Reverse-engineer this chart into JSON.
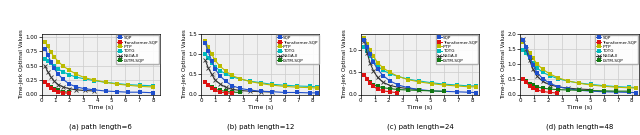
{
  "subplots": [
    {
      "title": "(a) path length=6",
      "ylim": [
        0.0,
        1.05
      ]
    },
    {
      "title": "(b) path length=12",
      "ylim": [
        0.0,
        1.5
      ]
    },
    {
      "title": "(c) path length=24",
      "ylim": [
        0.0,
        1.35
      ]
    },
    {
      "title": "(d) path length=48",
      "ylim": [
        0.0,
        2.0
      ]
    }
  ],
  "xlim": [
    0,
    8.5
  ],
  "xticks": [
    0,
    1,
    2,
    3,
    4,
    5,
    6,
    7,
    8
  ],
  "xlabel": "Time (s)",
  "ylabel": "Time-Jerk Optimal Values",
  "series": [
    {
      "name": "SQP",
      "color": "#1f4fcc",
      "marker": "s",
      "ms": 2.2,
      "lw": 0.8
    },
    {
      "name": "Transformer-SQP",
      "color": "#dd1111",
      "marker": "s",
      "ms": 2.2,
      "lw": 0.8
    },
    {
      "name": "iPTP",
      "color": "#bbbb00",
      "marker": "s",
      "ms": 2.2,
      "lw": 0.8
    },
    {
      "name": "TOTG",
      "color": "#00bbbb",
      "marker": "s",
      "ms": 2.2,
      "lw": 0.8
    },
    {
      "name": "NSGA-II",
      "color": "#333333",
      "marker": "x",
      "ms": 2.8,
      "lw": 0.8
    },
    {
      "name": "LSTM-SQP",
      "color": "#117711",
      "marker": "s",
      "ms": 2.2,
      "lw": 0.8
    }
  ],
  "curves": {
    "6": {
      "SQP": {
        "x": [
          0.25,
          0.45,
          0.65,
          0.9,
          1.2,
          1.55,
          2.0,
          2.5,
          3.1,
          3.8,
          4.6,
          5.4,
          6.2,
          7.1,
          8.0
        ],
        "y": [
          0.79,
          0.69,
          0.57,
          0.45,
          0.35,
          0.26,
          0.18,
          0.13,
          0.1,
          0.08,
          0.06,
          0.05,
          0.04,
          0.04,
          0.03
        ]
      },
      "Transformer-SQP": {
        "x": [
          0.25,
          0.45,
          0.65,
          0.9,
          1.2,
          1.55,
          1.95
        ],
        "y": [
          0.22,
          0.16,
          0.11,
          0.07,
          0.05,
          0.03,
          0.02
        ]
      },
      "iPTP": {
        "x": [
          0.25,
          0.45,
          0.65,
          0.9,
          1.2,
          1.55,
          2.0,
          2.5,
          3.1,
          3.8,
          4.6,
          5.4,
          6.2,
          7.1,
          8.0
        ],
        "y": [
          0.91,
          0.83,
          0.74,
          0.65,
          0.57,
          0.49,
          0.42,
          0.35,
          0.29,
          0.25,
          0.21,
          0.18,
          0.16,
          0.14,
          0.13
        ]
      },
      "TOTG": {
        "x": [
          0.25,
          0.45,
          0.65,
          0.9,
          1.2,
          1.55,
          2.0,
          2.5,
          3.1,
          3.8,
          4.6,
          5.4,
          6.2,
          7.1,
          8.0
        ],
        "y": [
          0.62,
          0.58,
          0.54,
          0.49,
          0.44,
          0.39,
          0.34,
          0.3,
          0.27,
          0.24,
          0.21,
          0.19,
          0.17,
          0.16,
          0.15
        ]
      },
      "NSGA-II": {
        "x": [
          0.25,
          0.45,
          0.65,
          0.9,
          1.2,
          1.55,
          2.0,
          2.5,
          3.1,
          3.8
        ],
        "y": [
          0.49,
          0.39,
          0.31,
          0.23,
          0.17,
          0.13,
          0.1,
          0.08,
          0.07,
          0.06
        ]
      },
      "LSTM-SQP": {
        "x": [
          0.25,
          0.45,
          0.65,
          0.9,
          1.2,
          1.55,
          1.95
        ],
        "y": [
          0.22,
          0.17,
          0.13,
          0.09,
          0.07,
          0.05,
          0.04
        ]
      }
    },
    "12": {
      "SQP": {
        "x": [
          0.3,
          0.5,
          0.75,
          1.0,
          1.35,
          1.75,
          2.2,
          2.8,
          3.5,
          4.3,
          5.1,
          6.0,
          6.9,
          7.8,
          8.3
        ],
        "y": [
          1.26,
          1.07,
          0.83,
          0.63,
          0.46,
          0.33,
          0.22,
          0.15,
          0.11,
          0.08,
          0.07,
          0.05,
          0.05,
          0.04,
          0.04
        ]
      },
      "Transformer-SQP": {
        "x": [
          0.3,
          0.5,
          0.75,
          1.0,
          1.35,
          1.75,
          2.2
        ],
        "y": [
          0.31,
          0.23,
          0.15,
          0.1,
          0.06,
          0.04,
          0.03
        ]
      },
      "iPTP": {
        "x": [
          0.3,
          0.5,
          0.75,
          1.0,
          1.35,
          1.75,
          2.2,
          2.8,
          3.5,
          4.3,
          5.1,
          6.0,
          6.9,
          7.8,
          8.3
        ],
        "y": [
          1.32,
          1.17,
          1.0,
          0.84,
          0.7,
          0.58,
          0.47,
          0.39,
          0.32,
          0.27,
          0.23,
          0.2,
          0.18,
          0.17,
          0.16
        ]
      },
      "TOTG": {
        "x": [
          0.3,
          0.5,
          0.75,
          1.0,
          1.35,
          1.75,
          2.2,
          2.8,
          3.5,
          4.3,
          5.1,
          6.0,
          6.9,
          7.8,
          8.3
        ],
        "y": [
          1.01,
          0.91,
          0.79,
          0.68,
          0.59,
          0.51,
          0.44,
          0.38,
          0.33,
          0.29,
          0.25,
          0.23,
          0.21,
          0.2,
          0.19
        ]
      },
      "NSGA-II": {
        "x": [
          0.3,
          0.5,
          0.75,
          1.0,
          1.35,
          1.75,
          2.2,
          2.8,
          3.5,
          4.3,
          5.1
        ],
        "y": [
          0.84,
          0.66,
          0.5,
          0.36,
          0.26,
          0.18,
          0.13,
          0.1,
          0.08,
          0.07,
          0.06
        ]
      },
      "LSTM-SQP": {
        "x": [
          0.3,
          0.5,
          0.75,
          1.0,
          1.35,
          1.75,
          2.2,
          2.8
        ],
        "y": [
          0.31,
          0.24,
          0.18,
          0.13,
          0.1,
          0.08,
          0.06,
          0.05
        ]
      }
    },
    "24": {
      "SQP": {
        "x": [
          0.25,
          0.45,
          0.65,
          0.9,
          1.2,
          1.6,
          2.1,
          2.7,
          3.4,
          4.2,
          5.1,
          6.0,
          6.9,
          7.8,
          8.3
        ],
        "y": [
          1.21,
          1.06,
          0.89,
          0.72,
          0.56,
          0.42,
          0.3,
          0.21,
          0.15,
          0.11,
          0.08,
          0.07,
          0.06,
          0.05,
          0.04
        ]
      },
      "Transformer-SQP": {
        "x": [
          0.25,
          0.45,
          0.65,
          0.9,
          1.2,
          1.6,
          2.1,
          2.6
        ],
        "y": [
          0.43,
          0.34,
          0.25,
          0.18,
          0.12,
          0.08,
          0.06,
          0.04
        ]
      },
      "iPTP": {
        "x": [
          0.25,
          0.45,
          0.65,
          0.9,
          1.2,
          1.6,
          2.1,
          2.7,
          3.4,
          4.2,
          5.1,
          6.0,
          6.9,
          7.8,
          8.3
        ],
        "y": [
          1.26,
          1.13,
          0.99,
          0.85,
          0.71,
          0.59,
          0.49,
          0.4,
          0.33,
          0.28,
          0.24,
          0.21,
          0.19,
          0.17,
          0.17
        ]
      },
      "TOTG": {
        "x": [
          0.25,
          0.45,
          0.65,
          0.9,
          1.2,
          1.6,
          2.1,
          2.7,
          3.4,
          4.2,
          5.1,
          6.0,
          6.9,
          7.8,
          8.3
        ],
        "y": [
          1.06,
          0.96,
          0.86,
          0.74,
          0.63,
          0.54,
          0.46,
          0.4,
          0.34,
          0.3,
          0.26,
          0.23,
          0.21,
          0.19,
          0.19
        ]
      },
      "NSGA-II": {
        "x": [
          0.25,
          0.45,
          0.65,
          0.9,
          1.2,
          1.6,
          2.1,
          2.7,
          3.4,
          4.2
        ],
        "y": [
          1.19,
          0.93,
          0.71,
          0.53,
          0.38,
          0.27,
          0.2,
          0.16,
          0.13,
          0.11
        ]
      },
      "LSTM-SQP": {
        "x": [
          0.25,
          0.45,
          0.65,
          0.9,
          1.2,
          1.6,
          2.1,
          2.7,
          3.4,
          4.2,
          5.1,
          6.0
        ],
        "y": [
          0.43,
          0.35,
          0.28,
          0.22,
          0.18,
          0.15,
          0.13,
          0.11,
          0.1,
          0.09,
          0.08,
          0.07
        ]
      }
    },
    "48": {
      "SQP": {
        "x": [
          0.2,
          0.4,
          0.65,
          0.9,
          1.2,
          1.6,
          2.1,
          2.7,
          3.4,
          4.2,
          5.1,
          6.0,
          6.9,
          7.8,
          8.3
        ],
        "y": [
          1.78,
          1.55,
          1.24,
          0.96,
          0.72,
          0.52,
          0.37,
          0.26,
          0.19,
          0.14,
          0.11,
          0.09,
          0.08,
          0.07,
          0.06
        ]
      },
      "Transformer-SQP": {
        "x": [
          0.2,
          0.4,
          0.65,
          0.9,
          1.2,
          1.6,
          2.1,
          2.6
        ],
        "y": [
          0.52,
          0.4,
          0.29,
          0.21,
          0.15,
          0.1,
          0.07,
          0.05
        ]
      },
      "iPTP": {
        "x": [
          0.2,
          0.4,
          0.65,
          0.9,
          1.2,
          1.6,
          2.1,
          2.7,
          3.4,
          4.2,
          5.1,
          6.0,
          6.9,
          7.8,
          8.3
        ],
        "y": [
          1.74,
          1.57,
          1.38,
          1.19,
          1.0,
          0.83,
          0.68,
          0.55,
          0.45,
          0.37,
          0.31,
          0.27,
          0.24,
          0.22,
          0.21
        ]
      },
      "TOTG": {
        "x": [
          0.2,
          0.4,
          0.65,
          0.9,
          1.2,
          1.6,
          2.1,
          2.7,
          3.4,
          4.2,
          5.1,
          6.0,
          6.9,
          7.8,
          8.3
        ],
        "y": [
          1.48,
          1.35,
          1.19,
          1.03,
          0.87,
          0.73,
          0.62,
          0.52,
          0.44,
          0.38,
          0.33,
          0.29,
          0.26,
          0.24,
          0.23
        ]
      },
      "NSGA-II": {
        "x": [
          0.2,
          0.4,
          0.65,
          0.9,
          1.2,
          1.6,
          2.1,
          2.7,
          3.4,
          4.2,
          5.1
        ],
        "y": [
          1.82,
          1.51,
          1.14,
          0.83,
          0.6,
          0.43,
          0.32,
          0.25,
          0.21,
          0.18,
          0.16
        ]
      },
      "LSTM-SQP": {
        "x": [
          0.2,
          0.4,
          0.65,
          0.9,
          1.2,
          1.6,
          2.1,
          2.7,
          3.4,
          4.2,
          5.1,
          6.0,
          6.9,
          7.8
        ],
        "y": [
          0.52,
          0.44,
          0.36,
          0.3,
          0.25,
          0.21,
          0.18,
          0.16,
          0.15,
          0.14,
          0.13,
          0.12,
          0.11,
          0.11
        ]
      }
    }
  },
  "path_labels": [
    "6",
    "12",
    "24",
    "48"
  ],
  "background_color": "#f0f0f0",
  "grid_color": "#cccccc"
}
